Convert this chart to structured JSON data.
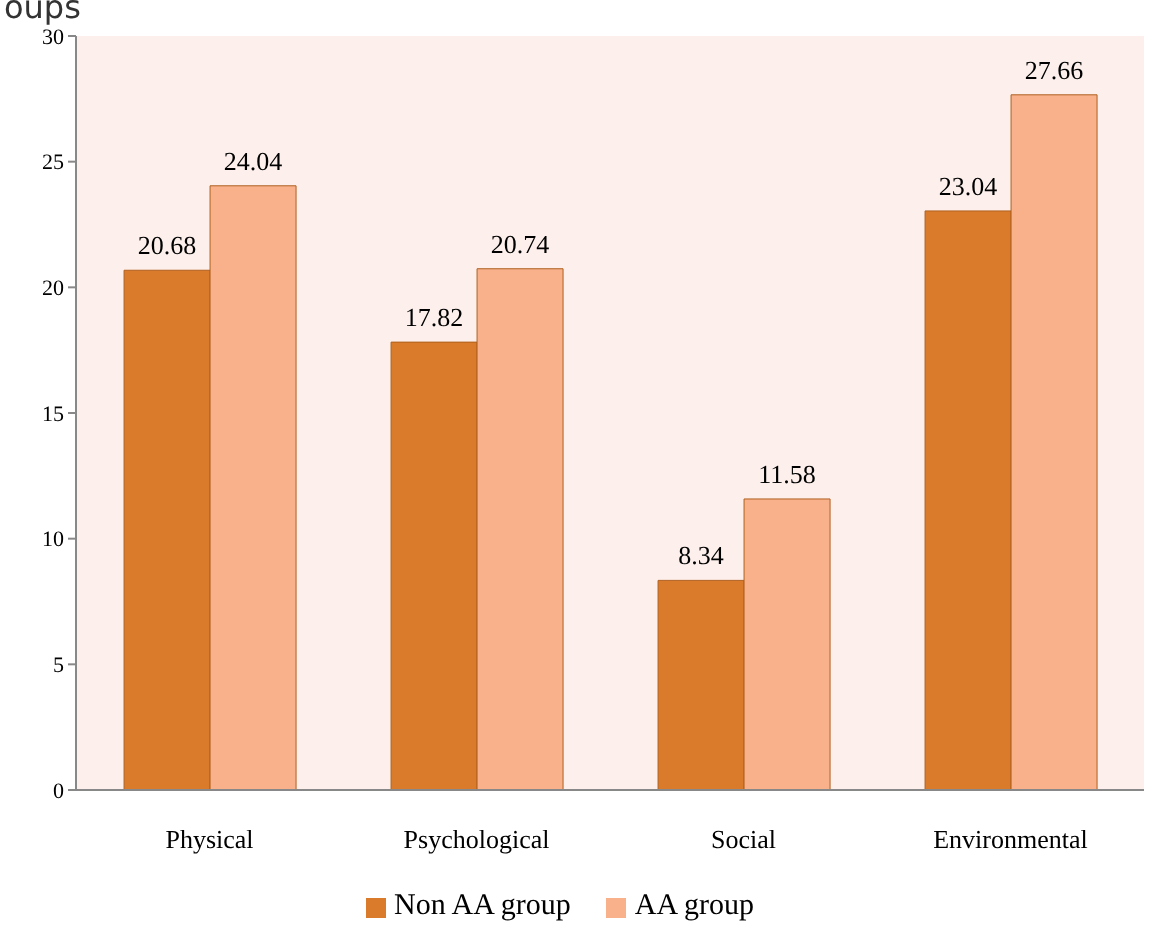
{
  "chart_data": {
    "type": "bar",
    "title": "oups",
    "categories": [
      "Physical",
      "Psychological",
      "Social",
      "Environmental"
    ],
    "series": [
      {
        "name": "Non AA group",
        "color": "#d97b2b",
        "values": [
          20.68,
          17.82,
          8.34,
          23.04
        ]
      },
      {
        "name": "AA group",
        "color": "#f8b18a",
        "values": [
          24.04,
          20.74,
          11.58,
          27.66
        ]
      }
    ],
    "ylim": [
      0,
      30
    ],
    "yticks": [
      0,
      5,
      10,
      15,
      20,
      25,
      30
    ],
    "data_labels": true,
    "legend": "bottom"
  }
}
